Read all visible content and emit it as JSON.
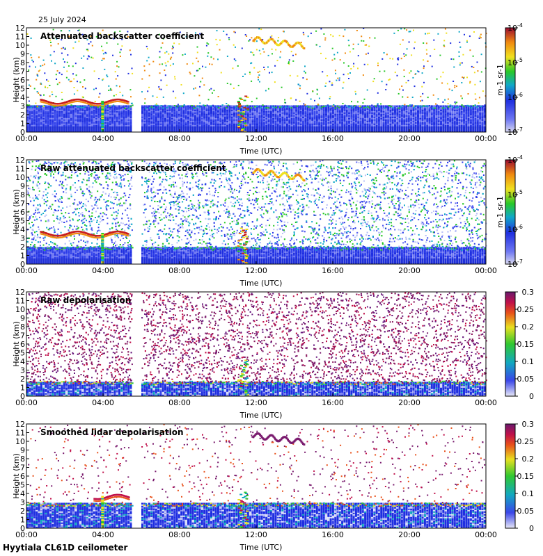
{
  "date_label": "25 July 2024",
  "footer": "Hyytiala CL61D ceilometer",
  "colors": {
    "plot_background": "#ffffff",
    "ground_blue": "#1f2fe0",
    "cloud_red": "#c81e1e",
    "depol_purple": "#7a1b6e"
  },
  "chart_data": [
    {
      "type": "heatmap",
      "title": "Attenuated backscatter coefficient",
      "xlabel": "Time (UTC)",
      "ylabel": "Height (km)",
      "x_ticks": [
        "00:00",
        "04:00",
        "08:00",
        "12:00",
        "16:00",
        "20:00",
        "00:00"
      ],
      "y_ticks": [
        "0",
        "1",
        "2",
        "3",
        "4",
        "5",
        "6",
        "7",
        "8",
        "9",
        "10",
        "11",
        "12"
      ],
      "xlim_hours": [
        0,
        24
      ],
      "ylim_km": [
        0,
        12
      ],
      "data_gap_hours": [
        5.5,
        6.0
      ],
      "colorbar": {
        "scale": "log",
        "min": "10-7",
        "max": "10-4",
        "ticks": [
          "10-4",
          "10-5",
          "10-6",
          "10-7"
        ],
        "unit": "m-1 sr-1"
      },
      "features": {
        "boundary_layer_top_km": 3.0,
        "cloud_layer_km": 3.6,
        "cloud_hours": [
          0.7,
          5.3
        ],
        "cirrus_km": [
          9.5,
          10.8
        ],
        "cirrus_hours": [
          11.8,
          14.5
        ],
        "rain_hours": [
          11.0,
          11.5
        ],
        "high_noise": false
      }
    },
    {
      "type": "heatmap",
      "title": "Raw attenuated backscatter coefficient",
      "xlabel": "Time (UTC)",
      "ylabel": "Height (km)",
      "x_ticks": [
        "00:00",
        "04:00",
        "08:00",
        "12:00",
        "16:00",
        "20:00",
        "00:00"
      ],
      "y_ticks": [
        "0",
        "1",
        "2",
        "3",
        "4",
        "5",
        "6",
        "7",
        "8",
        "9",
        "10",
        "11",
        "12"
      ],
      "xlim_hours": [
        0,
        24
      ],
      "ylim_km": [
        0,
        12
      ],
      "data_gap_hours": [
        5.5,
        6.0
      ],
      "colorbar": {
        "scale": "log",
        "min": "10-7",
        "max": "10-4",
        "ticks": [
          "10-4",
          "10-5",
          "10-6",
          "10-7"
        ],
        "unit": "m-1 sr-1"
      },
      "features": {
        "boundary_layer_top_km": 1.9,
        "cloud_layer_km": 3.6,
        "cloud_hours": [
          0.7,
          5.3
        ],
        "cirrus_km": [
          9.5,
          10.8
        ],
        "cirrus_hours": [
          11.8,
          14.5
        ],
        "rain_hours": [
          11.0,
          11.5
        ],
        "high_noise": true
      }
    },
    {
      "type": "heatmap",
      "title": "Raw depolarisation",
      "xlabel": "Time (UTC)",
      "ylabel": "Height (km)",
      "x_ticks": [
        "00:00",
        "04:00",
        "08:00",
        "12:00",
        "16:00",
        "20:00",
        "00:00"
      ],
      "y_ticks": [
        "0",
        "1",
        "2",
        "3",
        "4",
        "5",
        "6",
        "7",
        "8",
        "9",
        "10",
        "11",
        "12"
      ],
      "xlim_hours": [
        0,
        24
      ],
      "ylim_km": [
        0,
        12
      ],
      "data_gap_hours": [
        5.5,
        6.0
      ],
      "colorbar": {
        "scale": "linear",
        "min": 0,
        "max": 0.3,
        "ticks": [
          "0.3",
          "0.25",
          "0.2",
          "0.15",
          "0.1",
          "0.05",
          "0"
        ],
        "unit": ""
      },
      "features": {
        "boundary_layer_top_km": 1.6,
        "rain_hours": [
          11.0,
          11.5
        ],
        "high_noise": true
      }
    },
    {
      "type": "heatmap",
      "title": "Smoothed lidar depolarisation",
      "xlabel": "Time (UTC)",
      "ylabel": "Height (km)",
      "x_ticks": [
        "00:00",
        "04:00",
        "08:00",
        "12:00",
        "16:00",
        "20:00",
        "00:00"
      ],
      "y_ticks": [
        "0",
        "1",
        "2",
        "3",
        "4",
        "5",
        "6",
        "7",
        "8",
        "9",
        "10",
        "11",
        "12"
      ],
      "xlim_hours": [
        0,
        24
      ],
      "ylim_km": [
        0,
        12
      ],
      "data_gap_hours": [
        5.5,
        6.0
      ],
      "colorbar": {
        "scale": "linear",
        "min": 0,
        "max": 0.3,
        "ticks": [
          "0.3",
          "0.25",
          "0.2",
          "0.15",
          "0.1",
          "0.05",
          "0"
        ],
        "unit": ""
      },
      "features": {
        "boundary_layer_top_km": 2.8,
        "cloud_layer_km": 3.7,
        "cloud_hours": [
          3.5,
          5.3
        ],
        "cirrus_km": [
          9.5,
          10.8
        ],
        "cirrus_hours": [
          11.8,
          14.5
        ],
        "rain_hours": [
          11.0,
          11.5
        ],
        "high_noise": false
      }
    }
  ]
}
